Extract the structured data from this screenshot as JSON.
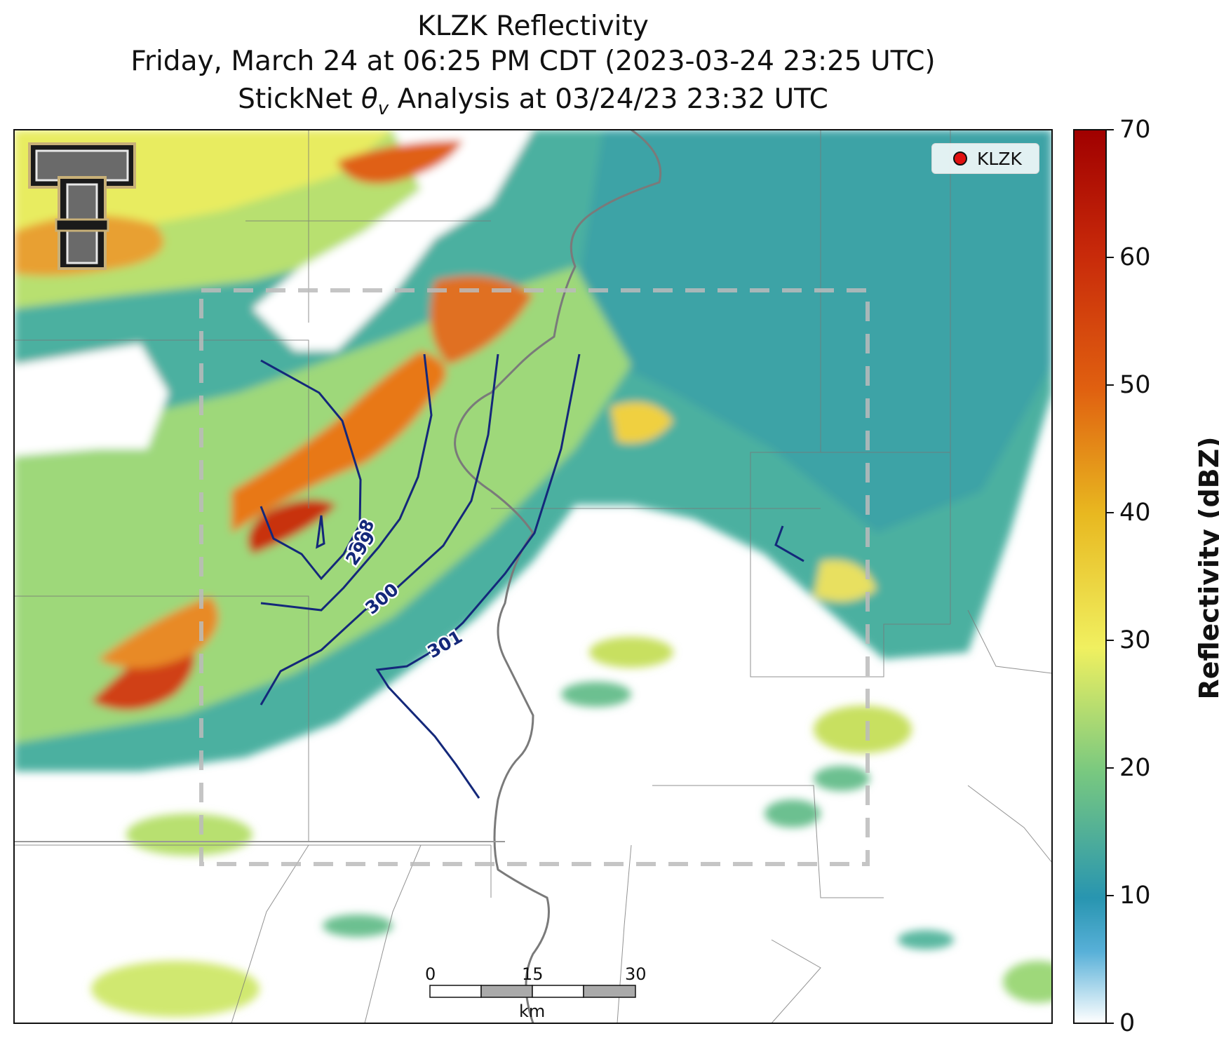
{
  "title": {
    "line1": "KLZK Reflectivity",
    "line2": "Friday, March 24 at 06:25 PM CDT (2023-03-24 23:25 UTC)",
    "line3": "StickNet θv Analysis at 03/24/23 23:32 UTC"
  },
  "legend": {
    "label": "KLZK",
    "marker_color": "#e01010"
  },
  "colorbar": {
    "label": "Reflectivity (dBZ)",
    "ticks": [
      "0",
      "10",
      "20",
      "30",
      "40",
      "50",
      "60",
      "70"
    ],
    "min": 0,
    "max": 70
  },
  "contours": [
    {
      "value": "298",
      "color": "#14287a"
    },
    {
      "value": "299",
      "color": "#14287a"
    },
    {
      "value": "300",
      "color": "#14287a"
    },
    {
      "value": "301",
      "color": "#14287a"
    }
  ],
  "scale_bar": {
    "ticks": [
      "0",
      "15",
      "30"
    ],
    "unit": "km"
  },
  "logo": {
    "icon": "double-t-logo-icon"
  },
  "colors": {
    "contour": "#14287a",
    "analysis_box": "#bbbbbb"
  }
}
